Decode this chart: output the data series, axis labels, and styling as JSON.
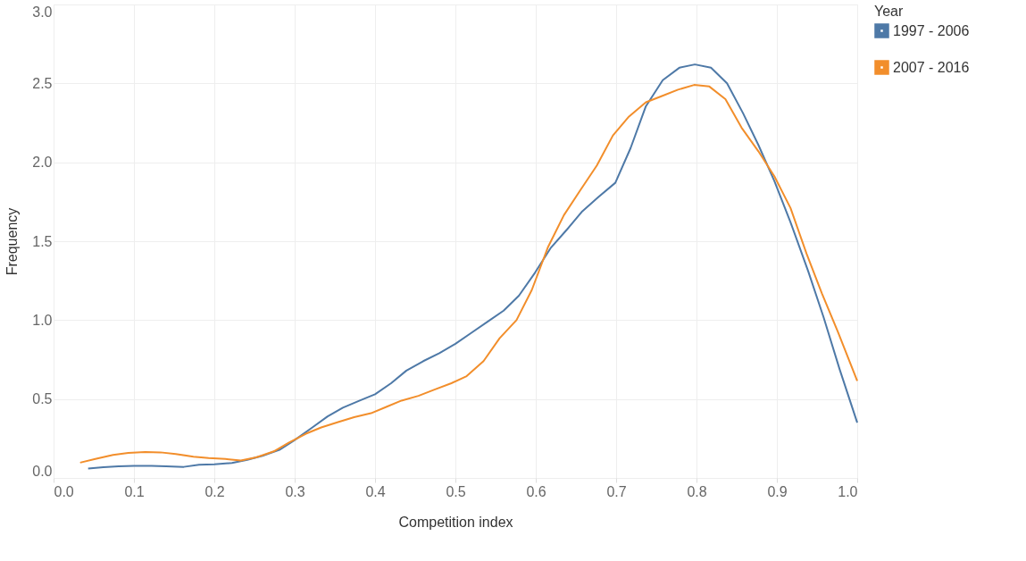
{
  "chart_data": {
    "type": "line",
    "xlabel": "Competition index",
    "ylabel": "Frequency",
    "legend_title": "Year",
    "legend": "right",
    "grid": true,
    "marker": "none",
    "line_style": "solid",
    "xlim": [
      0,
      1
    ],
    "xticks": [
      {
        "value": 0,
        "label": "0.0"
      },
      0.1,
      0.2,
      0.3,
      0.4,
      0.5,
      0.6,
      0.7,
      0.8,
      0.9,
      {
        "value": 1,
        "label": "1.0"
      }
    ],
    "ylim": [
      0,
      3
    ],
    "yticks": [
      {
        "value": 0,
        "label": "0.0"
      },
      0.5,
      {
        "value": 1,
        "label": "1.0"
      },
      1.5,
      {
        "value": 2,
        "label": "2.0"
      },
      2.5,
      {
        "value": 3,
        "label": "3.0"
      }
    ],
    "series": [
      {
        "name": "1997 - 2006",
        "color": "#4e79a7",
        "x": [
          0.043,
          0.062,
          0.081,
          0.1,
          0.122,
          0.14,
          0.162,
          0.181,
          0.2,
          0.222,
          0.241,
          0.26,
          0.281,
          0.3,
          0.322,
          0.341,
          0.36,
          0.381,
          0.4,
          0.42,
          0.439,
          0.46,
          0.48,
          0.5,
          0.52,
          0.54,
          0.56,
          0.579,
          0.599,
          0.619,
          0.639,
          0.658,
          0.678,
          0.699,
          0.718,
          0.737,
          0.758,
          0.779,
          0.798,
          0.818,
          0.838,
          0.858,
          0.877,
          0.897,
          0.917,
          0.939,
          0.958,
          0.978,
          1.0
        ],
        "values": [
          0.06,
          0.068,
          0.074,
          0.076,
          0.076,
          0.074,
          0.07,
          0.083,
          0.087,
          0.095,
          0.115,
          0.14,
          0.178,
          0.24,
          0.32,
          0.39,
          0.445,
          0.49,
          0.53,
          0.6,
          0.68,
          0.74,
          0.79,
          0.85,
          0.92,
          0.99,
          1.06,
          1.155,
          1.3,
          1.46,
          1.575,
          1.69,
          1.78,
          1.87,
          2.09,
          2.355,
          2.52,
          2.6,
          2.62,
          2.6,
          2.5,
          2.31,
          2.11,
          1.88,
          1.62,
          1.31,
          1.02,
          0.69,
          0.35
        ]
      },
      {
        "name": "2007 - 2016",
        "color": "#f28e2b",
        "x": [
          0.033,
          0.052,
          0.074,
          0.093,
          0.114,
          0.133,
          0.152,
          0.174,
          0.193,
          0.214,
          0.233,
          0.252,
          0.274,
          0.293,
          0.314,
          0.333,
          0.354,
          0.374,
          0.395,
          0.414,
          0.433,
          0.454,
          0.474,
          0.495,
          0.514,
          0.535,
          0.555,
          0.576,
          0.595,
          0.615,
          0.635,
          0.655,
          0.676,
          0.696,
          0.716,
          0.737,
          0.757,
          0.777,
          0.797,
          0.816,
          0.836,
          0.856,
          0.877,
          0.897,
          0.917,
          0.937,
          0.956,
          0.976,
          1.0
        ],
        "values": [
          0.097,
          0.12,
          0.146,
          0.158,
          0.164,
          0.162,
          0.152,
          0.135,
          0.126,
          0.12,
          0.11,
          0.13,
          0.168,
          0.224,
          0.28,
          0.32,
          0.354,
          0.385,
          0.41,
          0.45,
          0.49,
          0.52,
          0.56,
          0.6,
          0.645,
          0.74,
          0.885,
          1.0,
          1.19,
          1.46,
          1.665,
          1.82,
          1.98,
          2.17,
          2.29,
          2.38,
          2.42,
          2.46,
          2.49,
          2.48,
          2.4,
          2.22,
          2.07,
          1.91,
          1.71,
          1.42,
          1.17,
          0.925,
          0.615
        ]
      }
    ]
  }
}
